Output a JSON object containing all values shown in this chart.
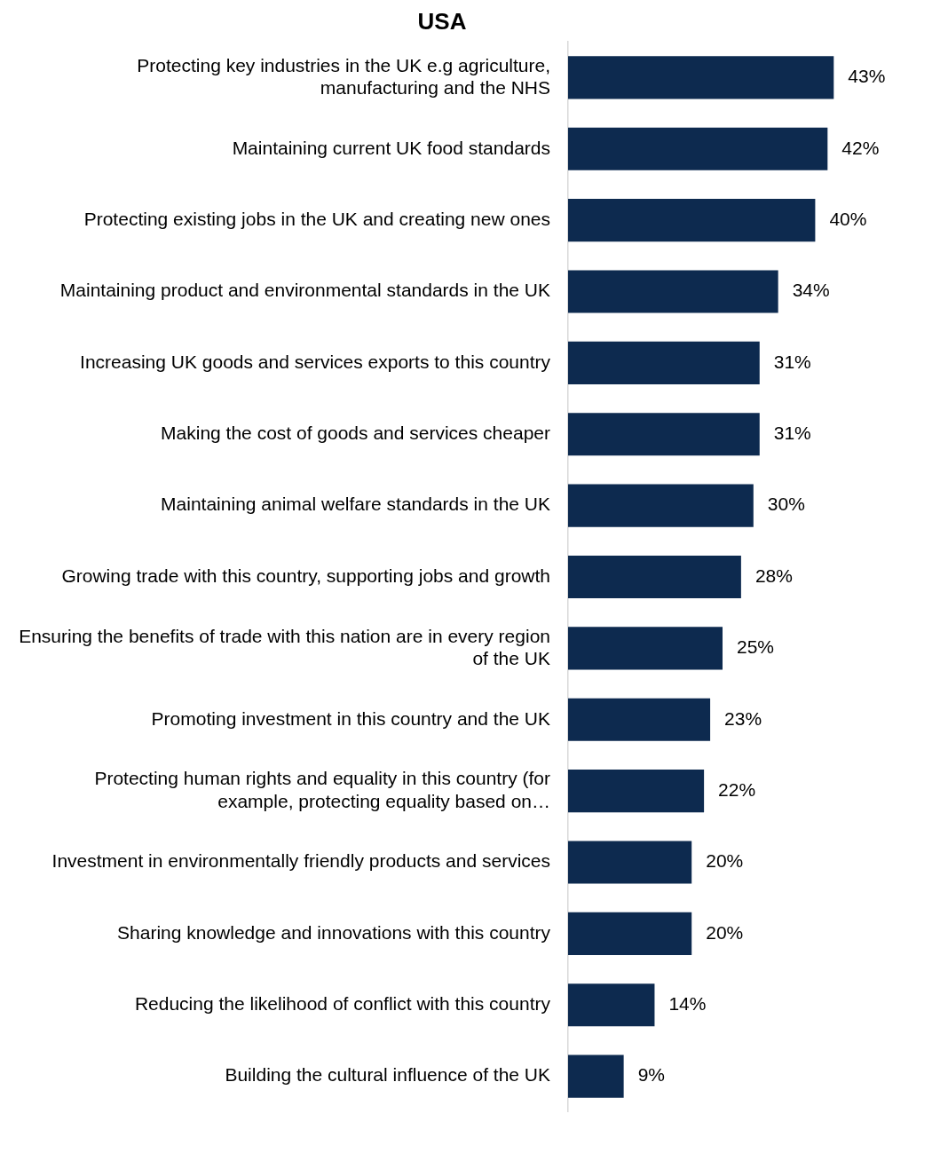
{
  "chart_data": {
    "type": "bar",
    "orientation": "horizontal",
    "title": "USA",
    "categories": [
      "Protecting key industries in the UK e.g agriculture, manufacturing and the NHS",
      "Maintaining current UK food standards",
      "Protecting existing jobs in the UK and creating new ones",
      "Maintaining product and environmental standards in the UK",
      "Increasing UK goods and services exports to this country",
      "Making the cost of goods and services cheaper",
      "Maintaining animal welfare standards in the UK",
      "Growing trade with this country, supporting jobs and growth",
      "Ensuring the benefits of trade with this nation are in every region of the UK",
      "Promoting investment in this country and the UK",
      "Protecting human rights and equality in this country (for example, protecting equality based on…",
      "Investment in environmentally friendly products and services",
      "Sharing knowledge and innovations with this country",
      "Reducing the likelihood of conflict with this country",
      "Building the cultural influence of the UK"
    ],
    "values": [
      43,
      42,
      40,
      34,
      31,
      31,
      30,
      28,
      25,
      23,
      22,
      20,
      20,
      14,
      9
    ],
    "value_labels": [
      "43%",
      "42%",
      "40%",
      "34%",
      "31%",
      "31%",
      "30%",
      "28%",
      "25%",
      "23%",
      "22%",
      "20%",
      "20%",
      "14%",
      "9%"
    ],
    "color": "#0d2a4f",
    "grid": false,
    "legend": false,
    "tick_labels": "y"
  }
}
